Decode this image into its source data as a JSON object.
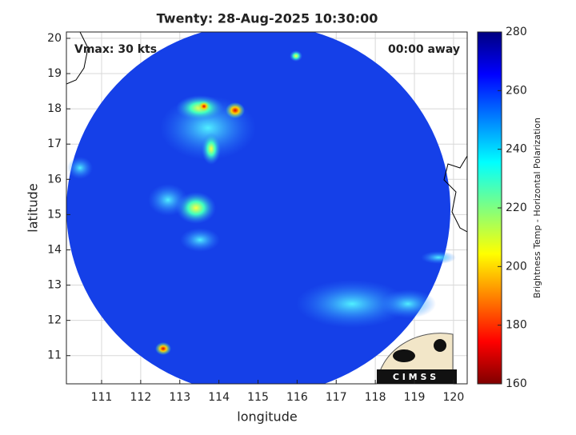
{
  "chart_data": {
    "type": "map",
    "title": "Twenty: 28-Aug-2025 10:30:00",
    "annotations": [
      "Vmax: 30 kts",
      "00:00 away"
    ],
    "x_label": "longitude",
    "y_label": "latitude",
    "xlim": [
      110.1,
      120.35
    ],
    "xticks": [
      111,
      112,
      113,
      114,
      115,
      116,
      117,
      118,
      119,
      120
    ],
    "ylim": [
      10.2,
      20.18
    ],
    "yticks": [
      11,
      12,
      13,
      14,
      15,
      16,
      17,
      18,
      19,
      20
    ],
    "grid": true,
    "colorbar": {
      "label": "Brightness Temp - Horizontal Polarization",
      "clim": [
        160,
        280
      ],
      "ticks": [
        160,
        180,
        200,
        220,
        240,
        260,
        280
      ]
    },
    "logo": "C I M S S"
  }
}
